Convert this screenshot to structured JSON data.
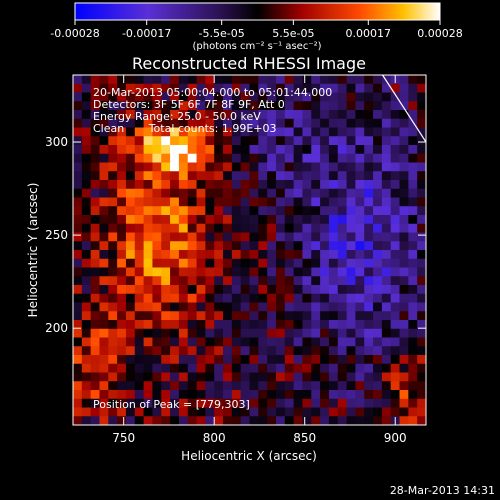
{
  "chart_data": {
    "type": "heatmap",
    "title": "Reconstructed RHESSI Image",
    "xlabel": "Heliocentric X (arcsec)",
    "ylabel": "Heliocentric Y (arcsec)",
    "xlim": [
      722,
      917
    ],
    "ylim": [
      148,
      336
    ],
    "x_ticks": [
      {
        "value": 750,
        "label": "750"
      },
      {
        "value": 800,
        "label": "800"
      },
      {
        "value": 850,
        "label": "850"
      },
      {
        "value": 900,
        "label": "900"
      }
    ],
    "y_ticks": [
      {
        "value": 200,
        "label": "200"
      },
      {
        "value": 250,
        "label": "250"
      },
      {
        "value": 300,
        "label": "300"
      }
    ],
    "colorbar": {
      "range": [
        -0.00028,
        0.00028
      ],
      "tick_labels": [
        "-0.00028",
        "-0.00017",
        "-5.5e-05",
        "5.5e-05",
        "0.00017",
        "0.00028"
      ],
      "unit_label": "(photons cm⁻² s⁻¹ asec⁻²)",
      "colors": [
        "#0000ff",
        "#6a33d0",
        "#3a1a6a",
        "#000000",
        "#a00000",
        "#ff4000",
        "#ffb000",
        "#ffffff"
      ]
    },
    "annotations": [
      "20-Mar-2013 05:00:04.000 to 05:01:44.000",
      "Detectors: 3F 5F 6F 7F 8F 9F, Att 0",
      "Energy Range: 25.0 - 50.0 keV",
      "Clean       Total counts: 1.99E+03"
    ],
    "peak_label": "Position of Peak = [779,303]",
    "peak": [
      779,
      303
    ],
    "limb_curve": [
      [
        893,
        336
      ],
      [
        917,
        300
      ]
    ]
  },
  "footer": {
    "timestamp": "28-Mar-2013 14:31"
  }
}
